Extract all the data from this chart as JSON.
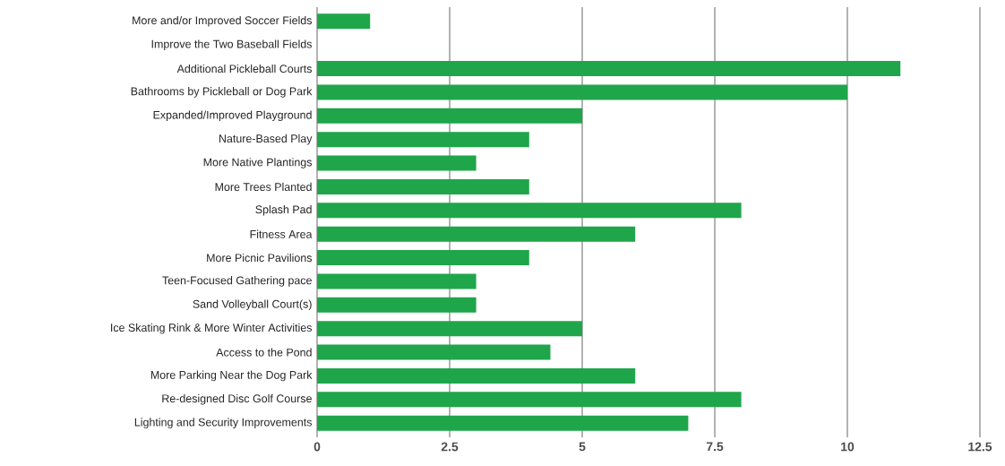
{
  "chart_data": {
    "type": "bar",
    "orientation": "horizontal",
    "categories": [
      "More and/or Improved Soccer Fields",
      "Improve the Two Baseball Fields",
      "Additional Pickleball Courts",
      "Bathrooms by Pickleball or Dog Park",
      "Expanded/Improved Playground",
      "Nature-Based Play",
      "More Native Plantings",
      "More Trees Planted",
      "Splash Pad",
      "Fitness Area",
      "More Picnic Pavilions",
      "Teen-Focused Gathering pace",
      "Sand Volleyball Court(s)",
      "Ice Skating Rink & More Winter Activities",
      "Access to the Pond",
      "More Parking Near the Dog Park",
      "Re-designed Disc Golf Course",
      "Lighting and Security Improvements"
    ],
    "values": [
      1,
      0,
      11,
      10,
      5,
      4,
      3,
      4,
      8,
      6,
      4,
      3,
      3,
      5,
      4.4,
      6,
      8,
      7
    ],
    "color": "#1fa64a",
    "xlim": [
      0,
      12.5
    ],
    "xticks": [
      0,
      2.5,
      5,
      7.5,
      10,
      12.5
    ],
    "grid": "x"
  }
}
